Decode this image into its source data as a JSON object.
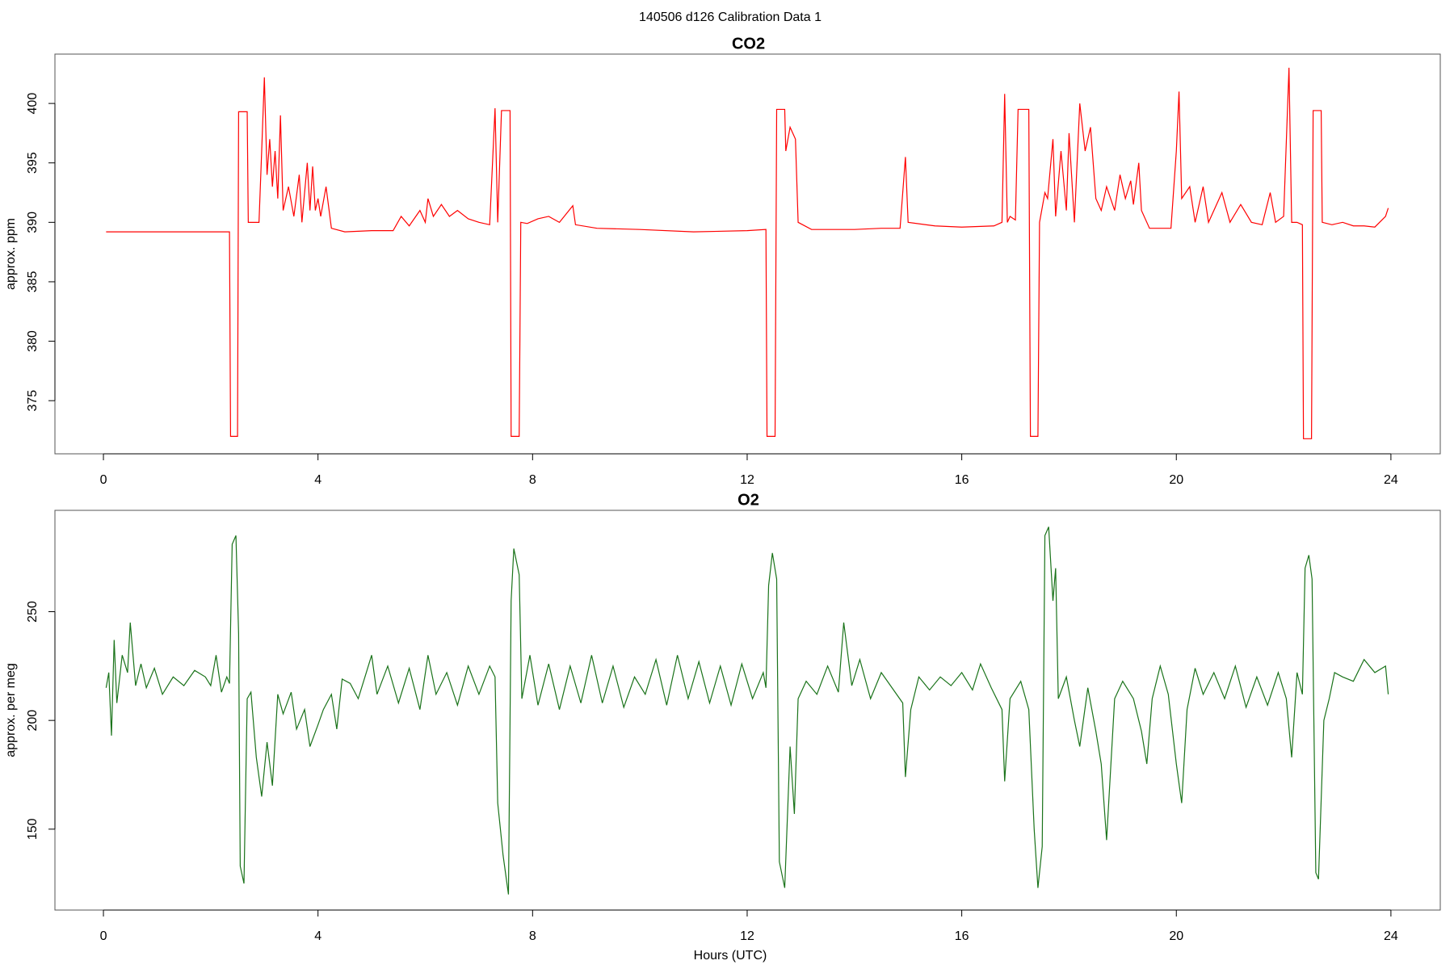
{
  "title": "140506   d126   Calibration Data 1",
  "chart_data": [
    {
      "type": "line",
      "title": "CO2",
      "ylabel": "approx. ppm",
      "color": "#ff0000",
      "xlim": [
        -0.904,
        24.92
      ],
      "ylim": [
        370.53,
        404.15
      ],
      "xticks": [
        0,
        4,
        8,
        12,
        16,
        20,
        24
      ],
      "yticks": [
        375,
        380,
        385,
        390,
        395,
        400
      ],
      "x": [
        0.05,
        2.35,
        2.37,
        2.5,
        2.52,
        2.68,
        2.7,
        2.9,
        2.95,
        3.0,
        3.05,
        3.1,
        3.15,
        3.2,
        3.25,
        3.3,
        3.35,
        3.45,
        3.55,
        3.65,
        3.7,
        3.8,
        3.85,
        3.9,
        3.95,
        4.0,
        4.05,
        4.15,
        4.25,
        4.5,
        5.0,
        5.4,
        5.55,
        5.7,
        5.9,
        6.0,
        6.05,
        6.15,
        6.3,
        6.45,
        6.6,
        6.8,
        7.0,
        7.2,
        7.3,
        7.35,
        7.42,
        7.58,
        7.6,
        7.75,
        7.78,
        7.9,
        8.1,
        8.3,
        8.5,
        8.75,
        8.8,
        9.2,
        10.0,
        11.0,
        12.0,
        12.35,
        12.37,
        12.52,
        12.55,
        12.7,
        12.72,
        12.8,
        12.9,
        12.95,
        13.2,
        14.0,
        14.5,
        14.85,
        14.95,
        15.0,
        15.5,
        16.0,
        16.6,
        16.75,
        16.8,
        16.85,
        16.9,
        17.0,
        17.05,
        17.25,
        17.28,
        17.42,
        17.45,
        17.55,
        17.6,
        17.7,
        17.75,
        17.85,
        17.95,
        18.0,
        18.1,
        18.2,
        18.3,
        18.4,
        18.5,
        18.6,
        18.7,
        18.85,
        18.95,
        19.05,
        19.15,
        19.2,
        19.3,
        19.35,
        19.5,
        19.9,
        20.0,
        20.05,
        20.1,
        20.25,
        20.35,
        20.5,
        20.6,
        20.85,
        21.0,
        21.2,
        21.4,
        21.6,
        21.75,
        21.85,
        22.0,
        22.1,
        22.15,
        22.25,
        22.35,
        22.37,
        22.52,
        22.55,
        22.7,
        22.72,
        22.9,
        23.1,
        23.3,
        23.5,
        23.7,
        23.9,
        23.95
      ],
      "values": [
        389.2,
        389.2,
        372,
        372,
        399.3,
        399.3,
        390,
        390,
        396,
        402.2,
        394,
        397,
        393,
        396,
        392,
        399,
        391,
        393,
        390.5,
        394,
        390,
        395,
        391,
        394.7,
        391,
        392,
        390.5,
        393,
        389.5,
        389.2,
        389.3,
        389.3,
        390.5,
        389.7,
        391,
        390,
        392,
        390.5,
        391.5,
        390.5,
        391,
        390.3,
        390,
        389.8,
        399.6,
        390,
        399.4,
        399.4,
        372,
        372,
        390,
        389.9,
        390.3,
        390.5,
        390,
        391.4,
        389.8,
        389.5,
        389.4,
        389.2,
        389.3,
        389.4,
        372,
        372,
        399.5,
        399.5,
        396,
        398,
        397,
        390,
        389.4,
        389.4,
        389.5,
        389.5,
        395.5,
        390,
        389.7,
        389.6,
        389.7,
        390,
        400.8,
        390,
        390.5,
        390.2,
        399.5,
        399.5,
        372,
        372,
        390,
        392.5,
        392,
        397,
        390.5,
        396,
        391,
        397.5,
        390,
        400,
        396,
        398,
        392,
        391,
        393,
        391,
        394,
        392,
        393.5,
        391.5,
        395,
        391,
        389.5,
        389.5,
        396,
        401,
        392,
        393,
        390,
        393,
        390,
        392.5,
        390,
        391.5,
        390,
        389.8,
        392.5,
        390,
        390.5,
        403,
        390,
        390,
        389.8,
        371.8,
        371.8,
        399.4,
        399.4,
        390,
        389.8,
        390,
        389.7,
        389.7,
        389.6,
        390.5,
        391.2
      ]
    },
    {
      "type": "line",
      "title": "O2",
      "ylabel": "approx. per meg",
      "xlabel": "Hours (UTC)",
      "color": "#1a731a",
      "xlim": [
        -0.904,
        24.92
      ],
      "ylim": [
        112.8,
        296.6
      ],
      "xticks": [
        0,
        4,
        8,
        12,
        16,
        20,
        24
      ],
      "yticks": [
        150,
        200,
        250
      ],
      "x": [
        0.05,
        0.1,
        0.15,
        0.2,
        0.25,
        0.35,
        0.45,
        0.5,
        0.6,
        0.7,
        0.8,
        0.95,
        1.1,
        1.3,
        1.5,
        1.7,
        1.9,
        2.0,
        2.1,
        2.2,
        2.3,
        2.35,
        2.4,
        2.47,
        2.52,
        2.55,
        2.62,
        2.68,
        2.75,
        2.85,
        2.95,
        3.05,
        3.15,
        3.25,
        3.35,
        3.5,
        3.6,
        3.75,
        3.85,
        4.0,
        4.1,
        4.25,
        4.35,
        4.45,
        4.6,
        4.75,
        4.9,
        5.0,
        5.1,
        5.3,
        5.5,
        5.7,
        5.9,
        6.05,
        6.2,
        6.4,
        6.6,
        6.8,
        7.0,
        7.2,
        7.3,
        7.35,
        7.45,
        7.55,
        7.6,
        7.65,
        7.75,
        7.8,
        7.95,
        8.1,
        8.3,
        8.5,
        8.7,
        8.9,
        9.1,
        9.3,
        9.5,
        9.7,
        9.9,
        10.1,
        10.3,
        10.5,
        10.7,
        10.9,
        11.1,
        11.3,
        11.5,
        11.7,
        11.9,
        12.1,
        12.3,
        12.35,
        12.4,
        12.47,
        12.55,
        12.6,
        12.7,
        12.8,
        12.88,
        12.95,
        13.1,
        13.3,
        13.5,
        13.7,
        13.8,
        13.95,
        14.1,
        14.3,
        14.5,
        14.7,
        14.9,
        14.95,
        15.05,
        15.2,
        15.4,
        15.6,
        15.8,
        16.0,
        16.2,
        16.35,
        16.55,
        16.75,
        16.8,
        16.9,
        17.1,
        17.25,
        17.35,
        17.42,
        17.5,
        17.55,
        17.62,
        17.7,
        17.75,
        17.8,
        17.95,
        18.1,
        18.2,
        18.35,
        18.5,
        18.6,
        18.7,
        18.85,
        19.0,
        19.2,
        19.35,
        19.45,
        19.55,
        19.7,
        19.85,
        20.0,
        20.1,
        20.2,
        20.35,
        20.5,
        20.7,
        20.9,
        21.1,
        21.3,
        21.5,
        21.7,
        21.9,
        22.05,
        22.15,
        22.25,
        22.35,
        22.4,
        22.47,
        22.53,
        22.6,
        22.65,
        22.75,
        22.85,
        22.95,
        23.1,
        23.3,
        23.5,
        23.7,
        23.9,
        23.95
      ],
      "values": [
        215,
        222,
        193,
        237,
        208,
        230,
        222,
        245,
        216,
        226,
        215,
        224,
        212,
        220,
        216,
        223,
        220,
        216,
        230,
        213,
        220,
        217,
        281,
        285,
        240,
        133,
        125,
        210,
        213,
        183,
        165,
        190,
        170,
        212,
        203,
        213,
        196,
        205,
        188,
        198,
        205,
        212,
        196,
        219,
        217,
        210,
        222,
        230,
        212,
        225,
        208,
        224,
        205,
        230,
        212,
        222,
        207,
        225,
        212,
        225,
        220,
        162,
        138,
        120,
        255,
        279,
        267,
        210,
        230,
        207,
        226,
        205,
        225,
        208,
        230,
        208,
        225,
        206,
        220,
        212,
        228,
        207,
        230,
        210,
        227,
        208,
        225,
        207,
        226,
        210,
        222,
        215,
        262,
        277,
        265,
        135,
        123,
        188,
        157,
        210,
        218,
        212,
        225,
        213,
        245,
        216,
        228,
        210,
        222,
        215,
        208,
        174,
        205,
        220,
        214,
        220,
        216,
        222,
        214,
        226,
        215,
        205,
        172,
        210,
        218,
        205,
        150,
        123,
        142,
        285,
        289,
        255,
        270,
        210,
        220,
        200,
        188,
        215,
        195,
        180,
        145,
        210,
        218,
        210,
        195,
        180,
        210,
        225,
        212,
        180,
        162,
        205,
        224,
        212,
        222,
        210,
        225,
        206,
        220,
        207,
        222,
        210,
        183,
        222,
        212,
        270,
        276,
        265,
        130,
        127,
        200,
        210,
        222,
        220,
        218,
        228,
        222,
        225,
        212
      ]
    }
  ]
}
